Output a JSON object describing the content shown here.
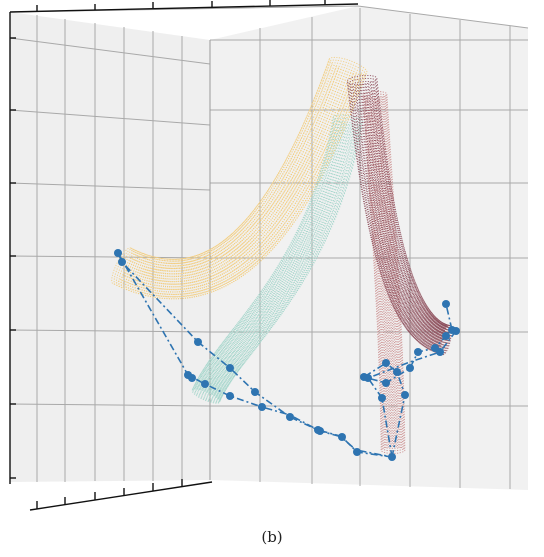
{
  "figure": {
    "caption": "(b)"
  },
  "colors": {
    "pane": "#efefef",
    "grid": "#a9a9a9",
    "axis": "#111111",
    "tube_yellow": "#f2cc7c",
    "tube_teal": "#9fd4c8",
    "tube_red": "#c98a8a",
    "tube_maroon": "#8b4a58",
    "trajectory": "#2e74b1"
  },
  "icons": {
    "trajectory_marker": "filled-circle-marker"
  }
}
